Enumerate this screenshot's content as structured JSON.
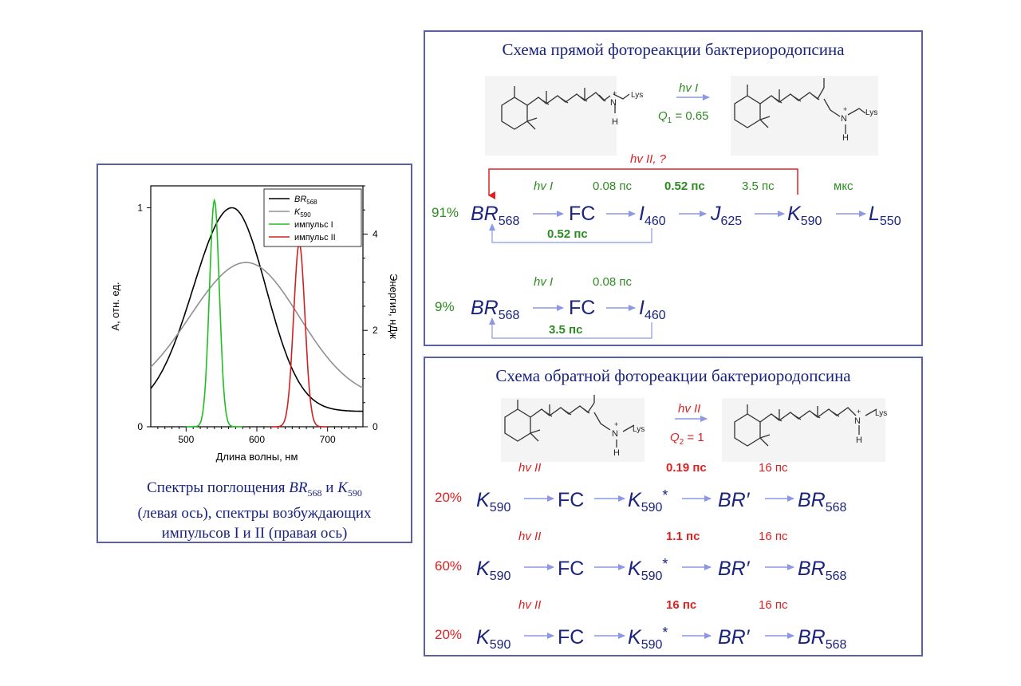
{
  "colors": {
    "border": "#5b5fa8",
    "navy": "#1a237e",
    "green": "#2e8b22",
    "red": "#e02020",
    "arrow": "#8c97e6"
  },
  "chart_data": {
    "type": "line",
    "xlabel": "Длина волны, нм",
    "ylabel": "А, отн. ед.",
    "y2label": "Энергия, нДж",
    "xlim": [
      450,
      750
    ],
    "ylim": [
      0,
      1.1
    ],
    "y2lim": [
      0,
      5
    ],
    "x_ticks": [
      "500",
      "600",
      "700"
    ],
    "y_ticks": [
      "0",
      "1"
    ],
    "y2_ticks": [
      "0",
      "2",
      "4"
    ],
    "legend": {
      "position": "top-right",
      "labels": [
        "BR568",
        "K590",
        "импульс I",
        "импульс II"
      ]
    },
    "series": [
      {
        "name": "BR568",
        "color": "#000000",
        "axis": "left",
        "peak_x": 565,
        "peak_y": 1.0
      },
      {
        "name": "K590",
        "color": "#909090",
        "axis": "left",
        "peak_x": 585,
        "peak_y": 0.75
      },
      {
        "name": "импульс I",
        "color": "#1fbf1f",
        "axis": "right",
        "peak_x": 540,
        "peak_y": 4.7
      },
      {
        "name": "импульс II",
        "color": "#d02020",
        "axis": "right",
        "peak_x": 660,
        "peak_y": 3.8
      }
    ]
  },
  "left_caption": {
    "line1_pre": "Спектры поглощения ",
    "br": "BR",
    "br_sub": "568",
    "mid": " и ",
    "k": "K",
    "k_sub": "590",
    "line2": "(левая ось), спектры возбуждающих",
    "line3": "импульсов I и II (правая ось)"
  },
  "forward": {
    "title": "Схема прямой фотореакции бактериородопсина",
    "hv1": "hv I",
    "q": "Q",
    "q_sub": "1",
    "q_val": " = 0.65",
    "lys": "Lys",
    "n": "N",
    "h": "H",
    "plus": "+",
    "hv2_q": "hv II, ?",
    "row1": {
      "pct": "91%",
      "hv": "hv I",
      "t1": "0.08 пс",
      "t2": "0.52 пс",
      "t3": "3.5 пс",
      "t4": "мкс",
      "back": "0.52 пс",
      "br": "BR",
      "br_sub": "568",
      "fc": "FC",
      "i": "I",
      "i_sub": "460",
      "j": "J",
      "j_sub": "625",
      "k": "K",
      "k_sub": "590",
      "l": "L",
      "l_sub": "550"
    },
    "row2": {
      "pct": "9%",
      "hv": "hv I",
      "t1": "0.08 пс",
      "back": "3.5 пс",
      "br": "BR",
      "br_sub": "568",
      "fc": "FC",
      "i": "I",
      "i_sub": "460"
    }
  },
  "reverse": {
    "title": "Схема обратной фотореакции бактериородопсина",
    "hv2": "hv II",
    "q": "Q",
    "q_sub": "2",
    "q_val": " = 1",
    "lys": "Lys",
    "n": "N",
    "h": "H",
    "plus": "+",
    "rows": [
      {
        "pct": "20%",
        "hv": "hv II",
        "t1": "0.19 пс",
        "t2": "16 пс"
      },
      {
        "pct": "60%",
        "hv": "hv II",
        "t1": "1.1 пс",
        "t2": "16 пс"
      },
      {
        "pct": "20%",
        "hv": "hv II",
        "t1": "16 пс",
        "t2": "16 пс"
      }
    ],
    "k": "K",
    "k_sub": "590",
    "fc": "FC",
    "kstar": "*",
    "brp": "BR′",
    "br": "BR",
    "br_sub": "568"
  }
}
